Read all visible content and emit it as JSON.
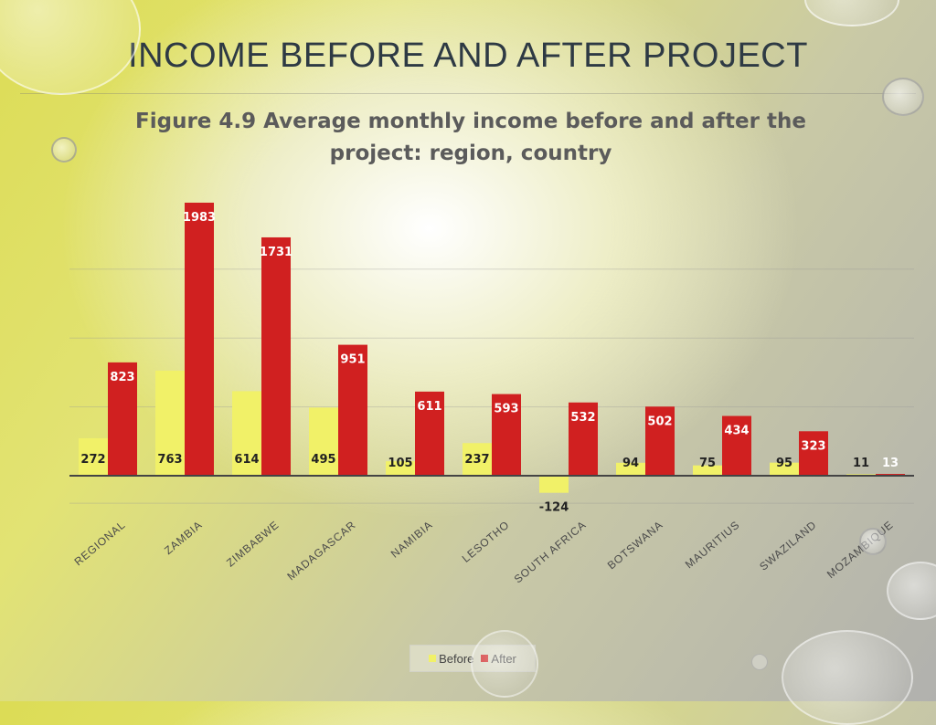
{
  "slide": {
    "title": "INCOME BEFORE AND AFTER PROJECT"
  },
  "colors": {
    "before": "#f1f168",
    "after": "#d02020",
    "axis": "#444444",
    "label": "#222222"
  },
  "chart_data": {
    "type": "bar",
    "title": "Figure 4.9 Average monthly income before and after the project: region, country",
    "title_lines": [
      "Figure 4.9 Average monthly income before and after the",
      "project: region, country"
    ],
    "categories": [
      "REGIONAL",
      "ZAMBIA",
      "ZIMBABWE",
      "MADAGASCAR",
      "NAMIBIA",
      "LESOTHO",
      "SOUTH AFRICA",
      "BOTSWANA",
      "MAURITIUS",
      "SWAZILAND",
      "MOZAMBIQUE"
    ],
    "series": [
      {
        "name": "Before",
        "values": [
          272,
          763,
          614,
          495,
          105,
          237,
          -124,
          94,
          75,
          95,
          11
        ]
      },
      {
        "name": "After",
        "values": [
          823,
          1983,
          1731,
          951,
          611,
          593,
          532,
          502,
          434,
          323,
          13
        ]
      }
    ],
    "ylim": [
      -200,
      2000
    ],
    "grid": true,
    "legend": "bottom",
    "data_labels": true,
    "xlabel": "",
    "ylabel": ""
  }
}
